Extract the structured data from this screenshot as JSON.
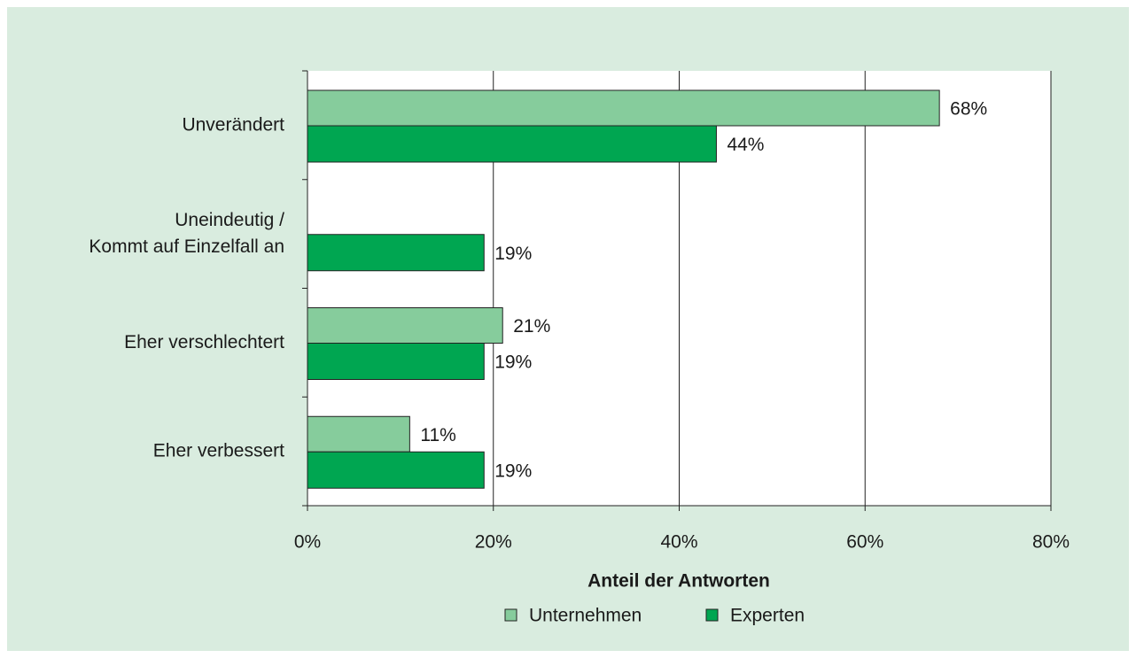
{
  "chart_data": {
    "type": "bar",
    "orientation": "horizontal",
    "categories": [
      "Unverändert",
      "Uneindeutig /\nKommt auf Einzelfall an",
      "Eher verschlechtert",
      "Eher verbessert"
    ],
    "series": [
      {
        "name": "Unternehmen",
        "color": "#86cc9c",
        "values": [
          68,
          null,
          21,
          11
        ],
        "value_labels": [
          "68%",
          null,
          "21%",
          "11%"
        ]
      },
      {
        "name": "Experten",
        "color": "#00a651",
        "values": [
          44,
          19,
          19,
          19
        ],
        "value_labels": [
          "44%",
          "19%",
          "19%",
          "19%"
        ]
      }
    ],
    "xlabel": "Anteil der Antworten",
    "xlim": [
      0,
      80
    ],
    "xticks": [
      {
        "value": 0,
        "label": "0%"
      },
      {
        "value": 20,
        "label": "20%"
      },
      {
        "value": 40,
        "label": "40%"
      },
      {
        "value": 60,
        "label": "60%"
      },
      {
        "value": 80,
        "label": "80%"
      }
    ],
    "grid": true,
    "legend": "bottom"
  }
}
